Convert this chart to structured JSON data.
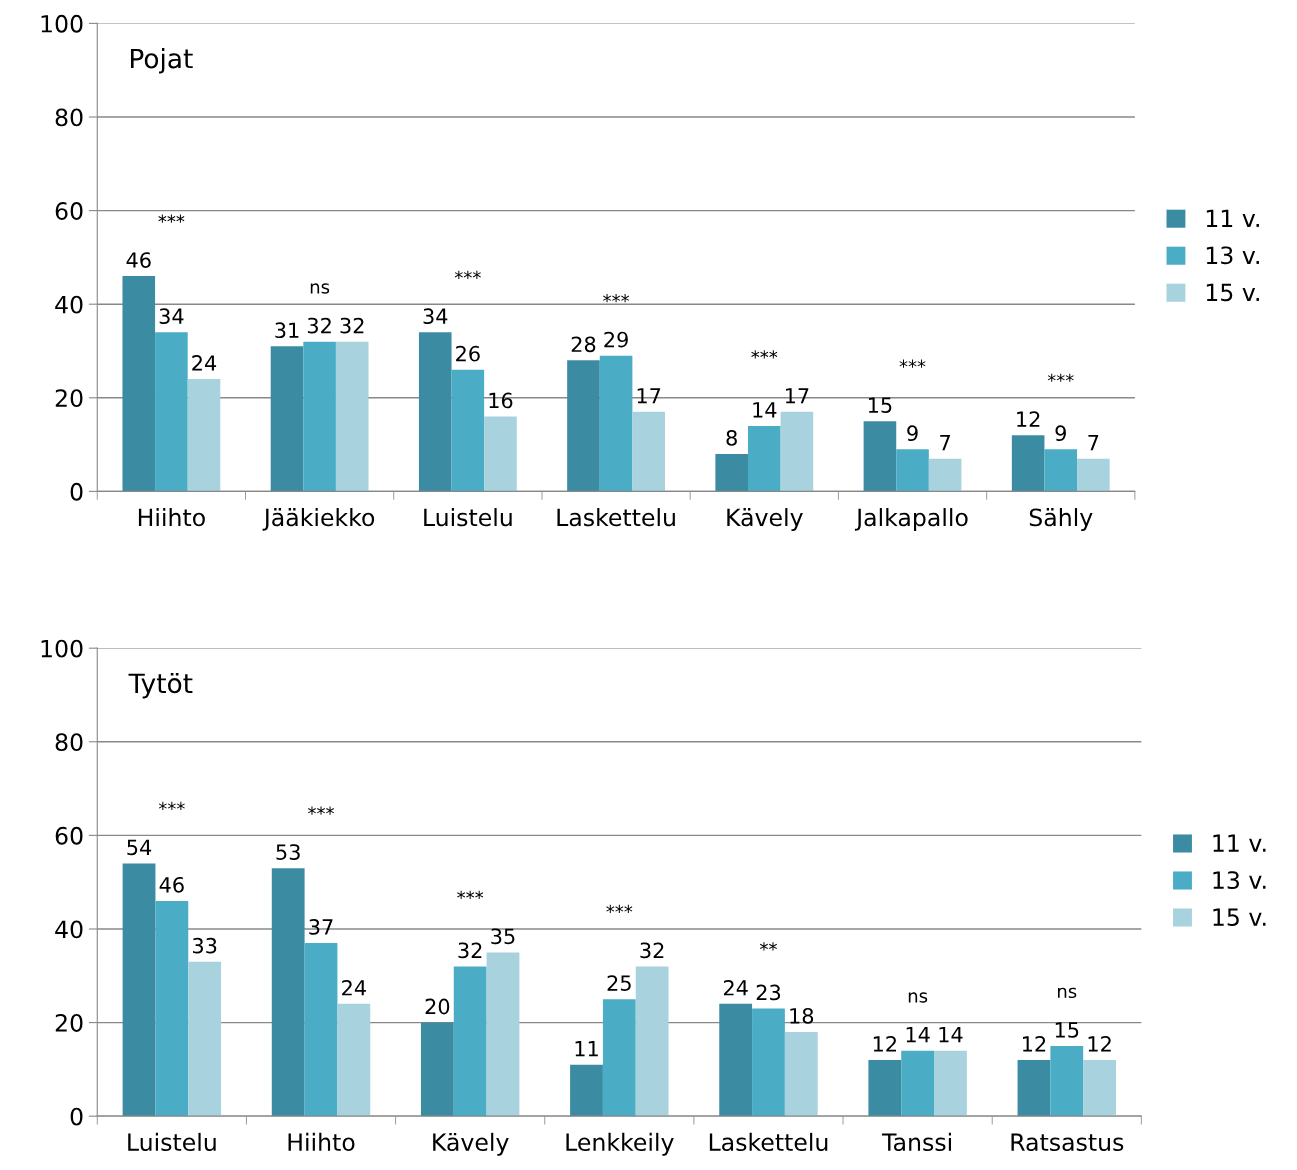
{
  "chart_data": [
    {
      "type": "bar",
      "title": "Pojat",
      "categories": [
        "Hiihto",
        "Jääkiekko",
        "Luistelu",
        "Laskettelu",
        "Kävely",
        "Jalkapallo",
        "Sähly"
      ],
      "series": [
        {
          "name": "11 v.",
          "color": "#3b8ca3",
          "values": [
            46,
            31,
            34,
            28,
            8,
            15,
            12
          ]
        },
        {
          "name": "13 v.",
          "color": "#4bacc6",
          "values": [
            34,
            32,
            26,
            29,
            14,
            9,
            9
          ]
        },
        {
          "name": "15 v.",
          "color": "#a8d2de",
          "values": [
            24,
            32,
            16,
            17,
            17,
            7,
            7
          ]
        }
      ],
      "ylim": [
        0,
        100
      ],
      "yticks": [
        0,
        20,
        40,
        60,
        80,
        100
      ],
      "grid": "y",
      "legend": "right",
      "data_labels": true,
      "annotations": [
        "***",
        "ns",
        "***",
        "***",
        "***",
        "***",
        "***"
      ]
    },
    {
      "type": "bar",
      "title": "Tytöt",
      "categories": [
        "Luistelu",
        "Hiihto",
        "Kävely",
        "Lenkkeily",
        "Laskettelu",
        "Tanssi",
        "Ratsastus"
      ],
      "series": [
        {
          "name": "11 v.",
          "color": "#3b8ca3",
          "values": [
            54,
            53,
            20,
            11,
            24,
            12,
            12
          ]
        },
        {
          "name": "13 v.",
          "color": "#4bacc6",
          "values": [
            46,
            37,
            32,
            25,
            23,
            14,
            15
          ]
        },
        {
          "name": "15 v.",
          "color": "#a8d2de",
          "values": [
            33,
            24,
            35,
            32,
            18,
            14,
            12
          ]
        }
      ],
      "ylim": [
        0,
        100
      ],
      "yticks": [
        0,
        20,
        40,
        60,
        80,
        100
      ],
      "grid": "y",
      "legend": "right",
      "data_labels": true,
      "annotations": [
        "***",
        "***",
        "***",
        "***",
        "**",
        "ns",
        "ns"
      ]
    }
  ]
}
